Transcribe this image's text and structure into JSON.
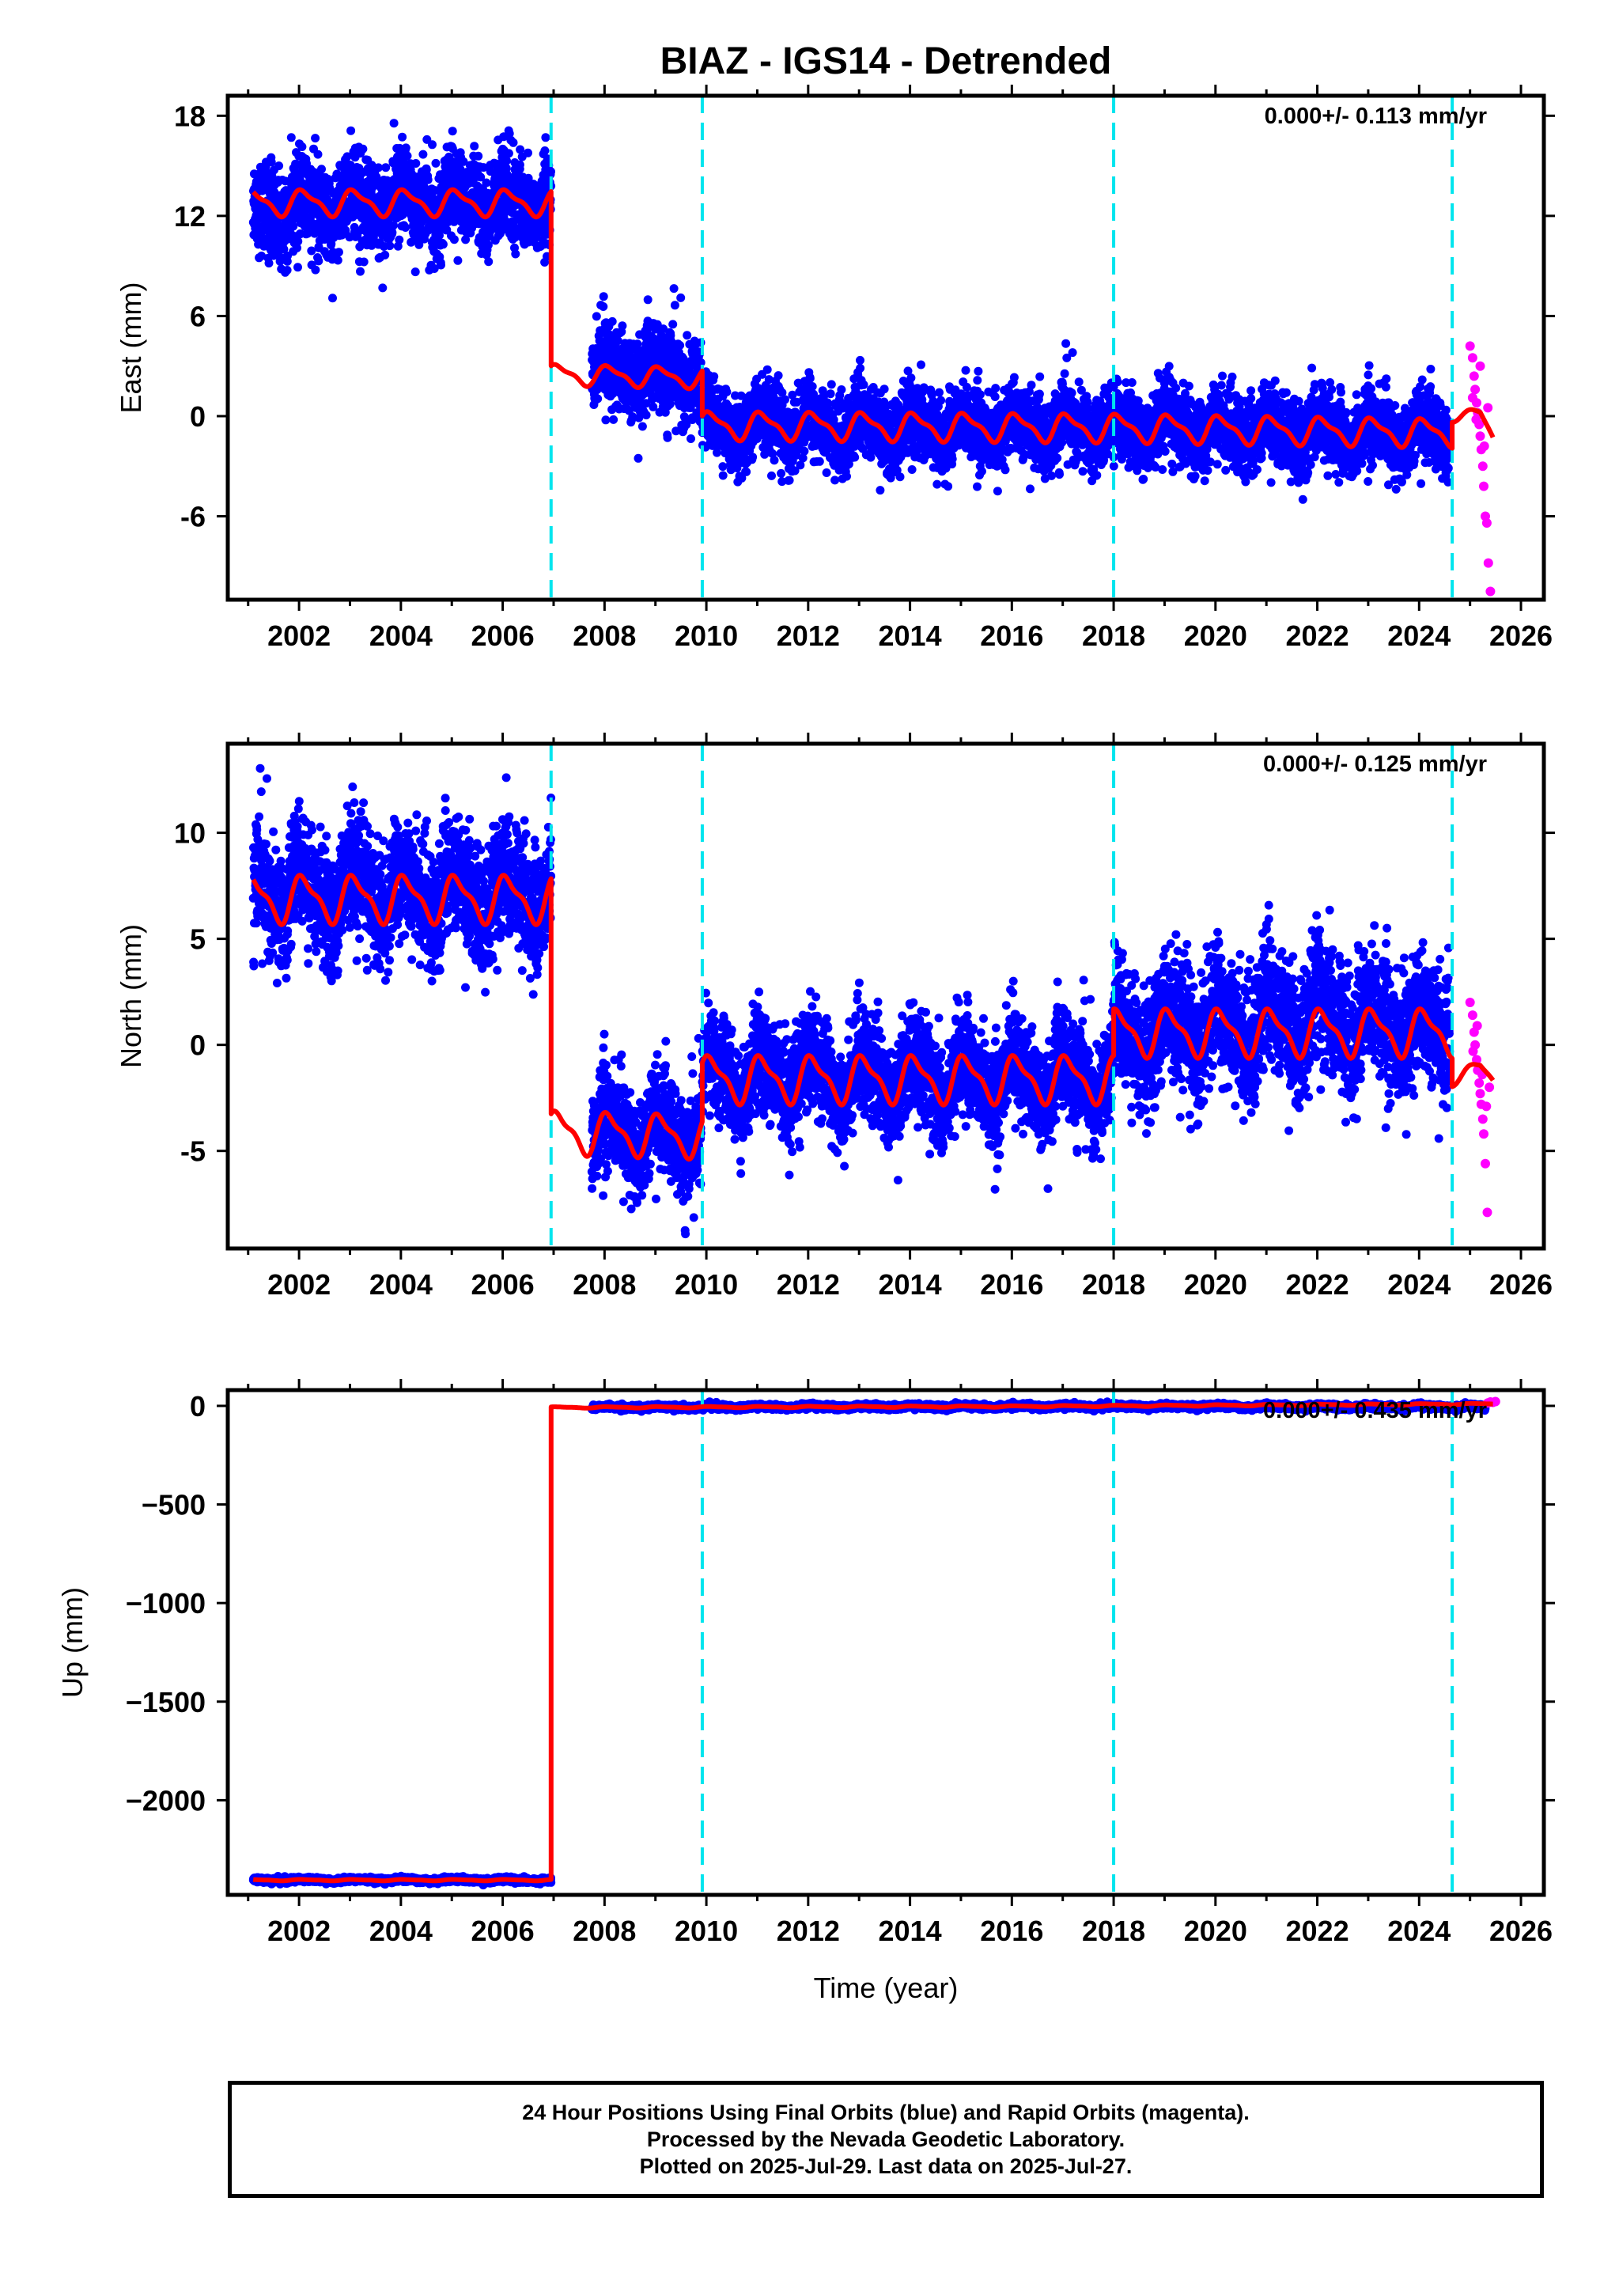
{
  "title": "BIAZ - IGS14 - Detrended",
  "colors": {
    "final": "#0000ff",
    "rapid": "#ff00ff",
    "model": "#ff0000",
    "offset": "#00e5ee",
    "axis": "#000000"
  },
  "xlabel": "Time (year)",
  "footer": {
    "line1": "24 Hour Positions Using Final Orbits (blue) and Rapid Orbits (magenta).",
    "line2": "Processed by the Nevada Geodetic Laboratory.",
    "line3": "Plotted on 2025-Jul-29. Last data on 2025-Jul-27."
  },
  "chart_data": [
    {
      "type": "scatter",
      "ylabel": "East (mm)",
      "rate_label": "0.000+/- 0.113 mm/yr",
      "xlim": [
        2000.6,
        2026.45
      ],
      "ylim": [
        -11,
        19.2
      ],
      "xticks": [
        2002,
        2004,
        2006,
        2008,
        2010,
        2012,
        2014,
        2016,
        2018,
        2020,
        2022,
        2024,
        2026
      ],
      "yticks": [
        18,
        12,
        6,
        0,
        -6
      ],
      "offsets": [
        2006.95,
        2009.92,
        2018.0,
        2024.65
      ],
      "series": [
        {
          "segments": [
            {
              "start": 2001.1,
              "end": 2006.95,
              "levels": [
                [
                  2001.1,
                  12.3
                ],
                [
                  2003.6,
                  12.8
                ],
                [
                  2006.95,
                  12.8
                ]
              ],
              "amp": 0.75,
              "noise": 1.3
            },
            {
              "start": 2007.75,
              "end": 2009.9,
              "levels": [
                [
                  2007.75,
                  2.8
                ],
                [
                  2009.9,
                  2.4
                ]
              ],
              "amp": 0.6,
              "noise": 1.3
            },
            {
              "start": 2009.92,
              "end": 2024.6,
              "levels": [
                [
                  2009.92,
                  -0.6
                ],
                [
                  2018.0,
                  -0.7
                ],
                [
                  2024.6,
                  -1.1
                ]
              ],
              "amp": 0.7,
              "noise": 1.1
            }
          ]
        },
        {
          "rapid": [
            [
              2025.0,
              4.2
            ],
            [
              2025.05,
              3.5
            ],
            [
              2025.08,
              2.4
            ],
            [
              2025.1,
              1.6
            ],
            [
              2025.13,
              0.8
            ],
            [
              2025.15,
              0.2
            ],
            [
              2025.18,
              -0.5
            ],
            [
              2025.2,
              -1.2
            ],
            [
              2025.22,
              -2.0
            ],
            [
              2025.25,
              -3.0
            ],
            [
              2025.27,
              -4.2
            ],
            [
              2025.3,
              -6.0
            ],
            [
              2025.33,
              -6.4
            ],
            [
              2025.36,
              -8.8
            ],
            [
              2025.4,
              -10.5
            ],
            [
              2025.05,
              1.1
            ],
            [
              2025.12,
              -0.2
            ],
            [
              2025.2,
              3.0
            ],
            [
              2025.28,
              -1.8
            ],
            [
              2025.35,
              0.5
            ]
          ]
        }
      ],
      "model": [
        {
          "start": 2001.1,
          "end": 2006.95,
          "levels": [
            [
              2001.1,
              12.8
            ],
            [
              2006.95,
              12.8
            ]
          ],
          "amp": 0.7
        },
        {
          "start": 2006.95,
          "end": 2009.92,
          "levels": [
            [
              2006.95,
              2.5
            ],
            [
              2009.92,
              2.3
            ]
          ],
          "amp": 0.55
        },
        {
          "start": 2009.92,
          "end": 2024.65,
          "levels": [
            [
              2009.92,
              -0.55
            ],
            [
              2018.0,
              -0.7
            ],
            [
              2024.65,
              -1.0
            ]
          ],
          "amp": 0.75
        },
        {
          "start": 2024.65,
          "end": 2025.45,
          "levels": [
            [
              2024.65,
              0.0
            ],
            [
              2025.2,
              0.1
            ],
            [
              2025.45,
              -1.2
            ]
          ],
          "amp": 0.3
        }
      ]
    },
    {
      "type": "scatter",
      "ylabel": "North (mm)",
      "rate_label": "0.000+/- 0.125 mm/yr",
      "xlim": [
        2000.6,
        2026.45
      ],
      "ylim": [
        -9.6,
        14.2
      ],
      "xticks": [
        2002,
        2004,
        2006,
        2008,
        2010,
        2012,
        2014,
        2016,
        2018,
        2020,
        2022,
        2024,
        2026
      ],
      "yticks": [
        10,
        5,
        0,
        -5
      ],
      "offsets": [
        2006.95,
        2009.92,
        2018.0,
        2024.65
      ],
      "series": [
        {
          "segments": [
            {
              "start": 2001.1,
              "end": 2006.95,
              "levels": [
                [
                  2001.1,
                  7.2
                ],
                [
                  2006.95,
                  7.2
                ]
              ],
              "amp": 1.0,
              "noise": 1.4
            },
            {
              "start": 2007.75,
              "end": 2009.9,
              "levels": [
                [
                  2007.75,
                  -4.0
                ],
                [
                  2009.9,
                  -4.3
                ]
              ],
              "amp": 0.9,
              "noise": 1.2
            },
            {
              "start": 2009.92,
              "end": 2018.0,
              "levels": [
                [
                  2009.92,
                  -1.5
                ],
                [
                  2018.0,
                  -1.6
                ]
              ],
              "amp": 1.0,
              "noise": 1.2
            },
            {
              "start": 2018.0,
              "end": 2024.6,
              "levels": [
                [
                  2018.0,
                  0.3
                ],
                [
                  2022.0,
                  1.4
                ],
                [
                  2024.6,
                  0.6
                ]
              ],
              "amp": 1.0,
              "noise": 1.5
            }
          ]
        },
        {
          "rapid": [
            [
              2025.0,
              2.0
            ],
            [
              2025.05,
              1.4
            ],
            [
              2025.08,
              0.6
            ],
            [
              2025.1,
              0.0
            ],
            [
              2025.13,
              -0.7
            ],
            [
              2025.15,
              -1.2
            ],
            [
              2025.18,
              -1.8
            ],
            [
              2025.2,
              -2.3
            ],
            [
              2025.22,
              -2.8
            ],
            [
              2025.25,
              -3.5
            ],
            [
              2025.27,
              -4.2
            ],
            [
              2025.3,
              -5.6
            ],
            [
              2025.34,
              -7.9
            ],
            [
              2025.06,
              -0.3
            ],
            [
              2025.14,
              0.9
            ],
            [
              2025.24,
              -1.4
            ],
            [
              2025.32,
              -2.9
            ],
            [
              2025.38,
              -2.0
            ]
          ]
        }
      ],
      "model": [
        {
          "start": 2001.1,
          "end": 2006.95,
          "levels": [
            [
              2001.1,
              6.9
            ],
            [
              2006.95,
              6.9
            ]
          ],
          "amp": 1.0
        },
        {
          "start": 2006.95,
          "end": 2009.92,
          "levels": [
            [
              2006.95,
              -4.1
            ],
            [
              2009.92,
              -4.3
            ]
          ],
          "amp": 0.9
        },
        {
          "start": 2009.92,
          "end": 2018.0,
          "levels": [
            [
              2009.92,
              -1.6
            ],
            [
              2018.0,
              -1.6
            ]
          ],
          "amp": 1.0
        },
        {
          "start": 2018.0,
          "end": 2024.65,
          "levels": [
            [
              2018.0,
              0.6
            ],
            [
              2024.65,
              0.6
            ]
          ],
          "amp": 1.0
        },
        {
          "start": 2024.65,
          "end": 2025.45,
          "levels": [
            [
              2024.65,
              -1.6
            ],
            [
              2025.2,
              -1.1
            ],
            [
              2025.45,
              -1.6
            ]
          ],
          "amp": 0.3
        }
      ]
    },
    {
      "type": "scatter",
      "ylabel": "Up (mm)",
      "rate_label": "0.000+/- 0.435 mm/yr",
      "xlim": [
        2000.6,
        2026.45
      ],
      "ylim": [
        -2480,
        80
      ],
      "xticks": [
        2002,
        2004,
        2006,
        2008,
        2010,
        2012,
        2014,
        2016,
        2018,
        2020,
        2022,
        2024,
        2026
      ],
      "yticks": [
        0,
        -500,
        -1000,
        -1500,
        -2000
      ],
      "ytick_labels": [
        "0",
        "−500",
        "−1000",
        "−1500",
        "−2000"
      ],
      "offsets": [
        2009.92,
        2018.0,
        2024.65
      ],
      "series": [
        {
          "segments": [
            {
              "start": 2001.1,
              "end": 2006.95,
              "levels": [
                [
                  2001.1,
                  -2405
                ],
                [
                  2006.95,
                  -2405
                ]
              ],
              "amp": 4,
              "noise": 6
            },
            {
              "start": 2007.75,
              "end": 2025.3,
              "levels": [
                [
                  2007.75,
                  -8
                ],
                [
                  2016.0,
                  -3
                ],
                [
                  2025.3,
                  -5
                ]
              ],
              "amp": 4,
              "noise": 6
            }
          ]
        },
        {
          "rapid": [
            [
              2025.35,
              15
            ],
            [
              2025.4,
              20
            ],
            [
              2025.45,
              18
            ],
            [
              2025.5,
              22
            ]
          ]
        }
      ],
      "model": [
        {
          "start": 2001.1,
          "end": 2006.95,
          "levels": [
            [
              2001.1,
              -2405
            ],
            [
              2006.95,
              -2405
            ]
          ],
          "amp": 3
        },
        {
          "start": 2006.95,
          "end": 2025.45,
          "levels": [
            [
              2006.95,
              -8
            ],
            [
              2016.0,
              -3
            ],
            [
              2025.45,
              10
            ]
          ],
          "amp": 3
        }
      ]
    }
  ]
}
